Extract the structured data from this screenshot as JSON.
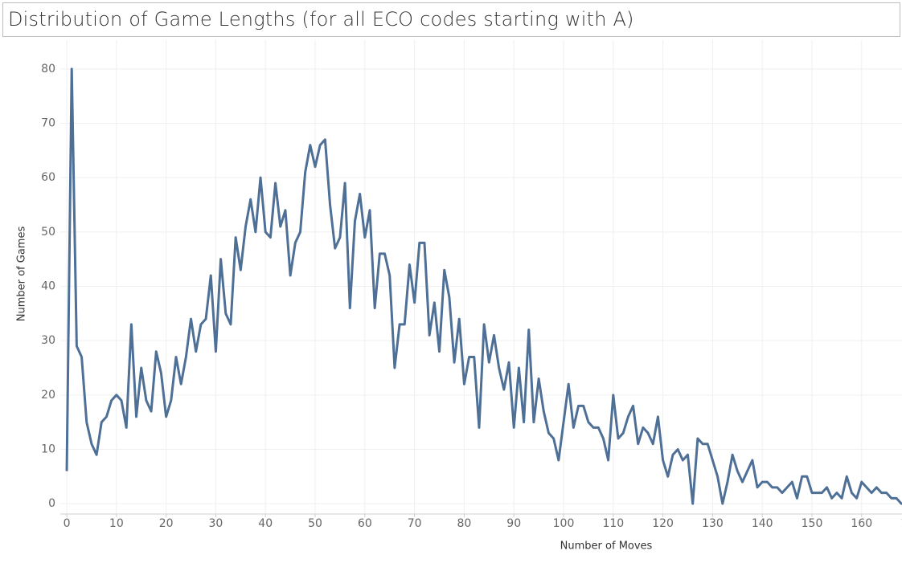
{
  "chart_data": {
    "type": "line",
    "title": "Distribution of Game Lengths (for all ECO codes starting with A)",
    "x_label": "Number of Moves",
    "y_label": "Number of Games",
    "color": "#4e6f96",
    "grid": true,
    "xlim": [
      -1.3,
      170
    ],
    "ylim": [
      -1.9,
      85.3
    ],
    "xticks": [
      0,
      10,
      20,
      30,
      40,
      50,
      60,
      70,
      80,
      90,
      100,
      110,
      120,
      130,
      140,
      150,
      160,
      170
    ],
    "yticks": [
      0,
      10,
      20,
      30,
      40,
      50,
      60,
      70,
      80
    ],
    "x": [
      0,
      1,
      2,
      3,
      4,
      5,
      6,
      7,
      8,
      9,
      10,
      11,
      12,
      13,
      14,
      15,
      16,
      17,
      18,
      19,
      20,
      21,
      22,
      23,
      24,
      25,
      26,
      27,
      28,
      29,
      30,
      31,
      32,
      33,
      34,
      35,
      36,
      37,
      38,
      39,
      40,
      41,
      42,
      43,
      44,
      45,
      46,
      47,
      48,
      49,
      50,
      51,
      52,
      53,
      54,
      55,
      56,
      57,
      58,
      59,
      60,
      61,
      62,
      63,
      64,
      65,
      66,
      67,
      68,
      69,
      70,
      71,
      72,
      73,
      74,
      75,
      76,
      77,
      78,
      79,
      80,
      81,
      82,
      83,
      84,
      85,
      86,
      87,
      88,
      89,
      90,
      91,
      92,
      93,
      94,
      95,
      96,
      97,
      98,
      99,
      100,
      101,
      102,
      103,
      104,
      105,
      106,
      107,
      108,
      109,
      110,
      111,
      112,
      113,
      114,
      115,
      116,
      117,
      118,
      119,
      120,
      121,
      122,
      123,
      124,
      125,
      126,
      127,
      128,
      129,
      130,
      131,
      132,
      133,
      134,
      135,
      136,
      137,
      138,
      139,
      140,
      141,
      142,
      143,
      144,
      145,
      146,
      147,
      148,
      149,
      150,
      151,
      152,
      153,
      154,
      155,
      156,
      157,
      158,
      159,
      160,
      161,
      162,
      163,
      164,
      165,
      166,
      167,
      168,
      169
    ],
    "values": [
      6,
      80,
      29,
      27,
      15,
      11,
      9,
      15,
      16,
      19,
      20,
      19,
      14,
      33,
      16,
      25,
      19,
      17,
      28,
      24,
      16,
      19,
      27,
      22,
      27,
      34,
      28,
      33,
      34,
      42,
      28,
      45,
      35,
      33,
      49,
      43,
      51,
      56,
      50,
      60,
      50,
      49,
      59,
      51,
      54,
      42,
      48,
      50,
      61,
      66,
      62,
      66,
      67,
      55,
      47,
      49,
      59,
      36,
      52,
      57,
      49,
      54,
      36,
      46,
      46,
      42,
      25,
      33,
      33,
      44,
      37,
      48,
      48,
      31,
      37,
      28,
      43,
      38,
      26,
      34,
      22,
      27,
      27,
      14,
      33,
      26,
      31,
      25,
      21,
      26,
      14,
      25,
      15,
      32,
      15,
      23,
      17,
      13,
      12,
      8,
      15,
      22,
      14,
      18,
      18,
      15,
      14,
      14,
      12,
      8,
      20,
      12,
      13,
      16,
      18,
      11,
      14,
      13,
      11,
      16,
      8,
      5,
      9,
      10,
      8,
      9,
      0,
      12,
      11,
      11,
      8,
      5,
      0,
      4,
      9,
      6,
      4,
      6,
      8,
      3,
      4,
      4,
      3,
      3,
      2,
      3,
      4,
      1,
      5,
      5,
      2,
      2,
      2,
      3,
      1,
      2,
      1,
      5,
      2,
      1,
      4,
      3,
      2,
      3,
      2,
      2,
      1,
      1,
      0,
      0
    ]
  }
}
